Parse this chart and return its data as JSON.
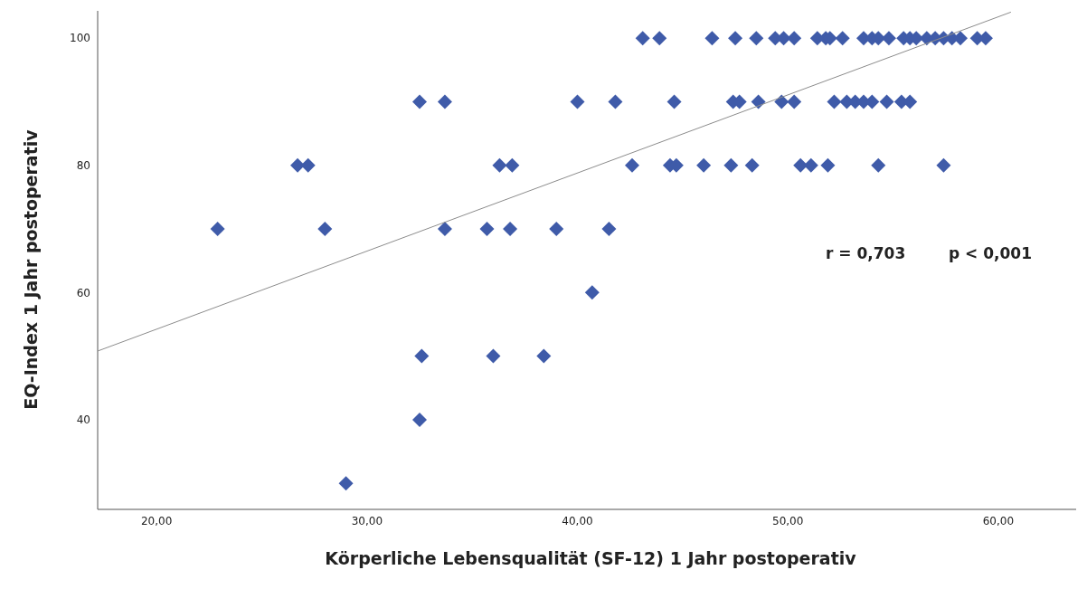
{
  "chart_data": {
    "type": "scatter",
    "xlabel": "Körperliche Lebensqualität (SF-12) 1 Jahr postoperativ",
    "ylabel": "EQ-Index 1 Jahr postoperativ",
    "annotations": [
      "r = 0,703",
      "p < 0,001"
    ],
    "xlim": [
      17.2,
      63.7
    ],
    "ylim": [
      25.9,
      104.3
    ],
    "xticks": [
      {
        "value": 20,
        "label": "20,00"
      },
      {
        "value": 30,
        "label": "30,00"
      },
      {
        "value": 40,
        "label": "40,00"
      },
      {
        "value": 50,
        "label": "50,00"
      },
      {
        "value": 60,
        "label": "60,00"
      }
    ],
    "yticks": [
      40,
      60,
      80,
      100
    ],
    "grid": false,
    "marker": "diamond",
    "series": [
      {
        "color": "#3f5ba9",
        "x": [
          43.1,
          43.9,
          46.4,
          47.5,
          48.5,
          49.4,
          49.8,
          50.3,
          51.4,
          51.8,
          52.0,
          52.6,
          53.6,
          54.0,
          54.3,
          54.8,
          55.5,
          55.8,
          56.1,
          56.6,
          57.0,
          57.4,
          57.8,
          58.2,
          59.0,
          59.4,
          32.5,
          33.7,
          40.0,
          41.8,
          44.6,
          47.4,
          47.7,
          48.6,
          49.7,
          50.3,
          52.2,
          52.8,
          53.2,
          53.6,
          54.0,
          54.7,
          55.4,
          55.8,
          26.7,
          27.2,
          36.3,
          36.9,
          42.6,
          44.4,
          44.7,
          46.0,
          47.3,
          48.3,
          50.6,
          51.1,
          51.9,
          54.3,
          57.4,
          22.9,
          28.0,
          33.7,
          35.7,
          36.8,
          39.0,
          41.5,
          40.7,
          32.6,
          36.0,
          38.4,
          32.5,
          29.0
        ],
        "values": [
          100,
          100,
          100,
          100,
          100,
          100,
          100,
          100,
          100,
          100,
          100,
          100,
          100,
          100,
          100,
          100,
          100,
          100,
          100,
          100,
          100,
          100,
          100,
          100,
          100,
          100,
          90,
          90,
          90,
          90,
          90,
          90,
          90,
          90,
          90,
          90,
          90,
          90,
          90,
          90,
          90,
          90,
          90,
          90,
          80,
          80,
          80,
          80,
          80,
          80,
          80,
          80,
          80,
          80,
          80,
          80,
          80,
          80,
          80,
          70,
          70,
          70,
          70,
          70,
          70,
          70,
          60,
          50,
          50,
          50,
          40,
          30
        ]
      },
      {
        "type": "line",
        "marker": "none",
        "color": "#8c8c8c",
        "x": [
          17.2,
          60.6
        ],
        "values": [
          50.8,
          104.1
        ]
      }
    ]
  }
}
